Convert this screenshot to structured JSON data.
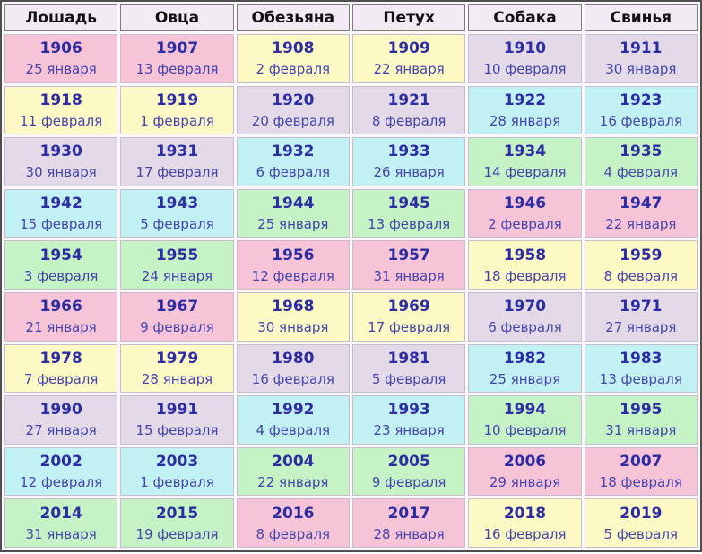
{
  "colors": {
    "pink": "#f7c3d6",
    "yellow": "#fcf9c5",
    "lavender": "#e3d9e7",
    "cyan": "#c2f1f3",
    "green": "#c6f3c6",
    "header_bg": "#f3ebf4",
    "table_bg": "#faf8fb",
    "outer_border": "#4f4f4f",
    "header_border": "#7d7d7d",
    "cell_border": "#c8bcd0",
    "year_text": "#2d2da3",
    "date_text": "#4444ad"
  },
  "table": {
    "columns": [
      "Лошадь",
      "Овца",
      "Обезьяна",
      "Петух",
      "Собака",
      "Свинья"
    ],
    "rows": [
      [
        {
          "year": "1906",
          "date": "25 января",
          "color": "pink"
        },
        {
          "year": "1907",
          "date": "13 февраля",
          "color": "pink"
        },
        {
          "year": "1908",
          "date": "2 февраля",
          "color": "yellow"
        },
        {
          "year": "1909",
          "date": "22 января",
          "color": "yellow"
        },
        {
          "year": "1910",
          "date": "10 февраля",
          "color": "lavender"
        },
        {
          "year": "1911",
          "date": "30 января",
          "color": "lavender"
        }
      ],
      [
        {
          "year": "1918",
          "date": "11 февраля",
          "color": "yellow"
        },
        {
          "year": "1919",
          "date": "1 февраля",
          "color": "yellow"
        },
        {
          "year": "1920",
          "date": "20 февраля",
          "color": "lavender"
        },
        {
          "year": "1921",
          "date": "8 февраля",
          "color": "lavender"
        },
        {
          "year": "1922",
          "date": "28 января",
          "color": "cyan"
        },
        {
          "year": "1923",
          "date": "16 февраля",
          "color": "cyan"
        }
      ],
      [
        {
          "year": "1930",
          "date": "30 января",
          "color": "lavender"
        },
        {
          "year": "1931",
          "date": "17 февраля",
          "color": "lavender"
        },
        {
          "year": "1932",
          "date": "6 февраля",
          "color": "cyan"
        },
        {
          "year": "1933",
          "date": "26 января",
          "color": "cyan"
        },
        {
          "year": "1934",
          "date": "14 февраля",
          "color": "green"
        },
        {
          "year": "1935",
          "date": "4 февраля",
          "color": "green"
        }
      ],
      [
        {
          "year": "1942",
          "date": "15 февраля",
          "color": "cyan"
        },
        {
          "year": "1943",
          "date": "5 февраля",
          "color": "cyan"
        },
        {
          "year": "1944",
          "date": "25 января",
          "color": "green"
        },
        {
          "year": "1945",
          "date": "13 февраля",
          "color": "green"
        },
        {
          "year": "1946",
          "date": "2 февраля",
          "color": "pink"
        },
        {
          "year": "1947",
          "date": "22 января",
          "color": "pink"
        }
      ],
      [
        {
          "year": "1954",
          "date": "3 февраля",
          "color": "green"
        },
        {
          "year": "1955",
          "date": "24 января",
          "color": "green"
        },
        {
          "year": "1956",
          "date": "12 февраля",
          "color": "pink"
        },
        {
          "year": "1957",
          "date": "31 января",
          "color": "pink"
        },
        {
          "year": "1958",
          "date": "18 февраля",
          "color": "yellow"
        },
        {
          "year": "1959",
          "date": "8 февраля",
          "color": "yellow"
        }
      ],
      [
        {
          "year": "1966",
          "date": "21 января",
          "color": "pink"
        },
        {
          "year": "1967",
          "date": "9 февраля",
          "color": "pink"
        },
        {
          "year": "1968",
          "date": "30 января",
          "color": "yellow"
        },
        {
          "year": "1969",
          "date": "17 февраля",
          "color": "yellow"
        },
        {
          "year": "1970",
          "date": "6 февраля",
          "color": "lavender"
        },
        {
          "year": "1971",
          "date": "27 января",
          "color": "lavender"
        }
      ],
      [
        {
          "year": "1978",
          "date": "7 февраля",
          "color": "yellow"
        },
        {
          "year": "1979",
          "date": "28 января",
          "color": "yellow"
        },
        {
          "year": "1980",
          "date": "16 февраля",
          "color": "lavender"
        },
        {
          "year": "1981",
          "date": "5 февраля",
          "color": "lavender"
        },
        {
          "year": "1982",
          "date": "25 января",
          "color": "cyan"
        },
        {
          "year": "1983",
          "date": "13 февраля",
          "color": "cyan"
        }
      ],
      [
        {
          "year": "1990",
          "date": "27 января",
          "color": "lavender"
        },
        {
          "year": "1991",
          "date": "15 февраля",
          "color": "lavender"
        },
        {
          "year": "1992",
          "date": "4 февраля",
          "color": "cyan"
        },
        {
          "year": "1993",
          "date": "23 января",
          "color": "cyan"
        },
        {
          "year": "1994",
          "date": "10 февраля",
          "color": "green"
        },
        {
          "year": "1995",
          "date": "31 января",
          "color": "green"
        }
      ],
      [
        {
          "year": "2002",
          "date": "12 февраля",
          "color": "cyan"
        },
        {
          "year": "2003",
          "date": "1 февраля",
          "color": "cyan"
        },
        {
          "year": "2004",
          "date": "22 января",
          "color": "green"
        },
        {
          "year": "2005",
          "date": "9 февраля",
          "color": "green"
        },
        {
          "year": "2006",
          "date": "29 января",
          "color": "pink"
        },
        {
          "year": "2007",
          "date": "18 февраля",
          "color": "pink"
        }
      ],
      [
        {
          "year": "2014",
          "date": "31 января",
          "color": "green"
        },
        {
          "year": "2015",
          "date": "19 февраля",
          "color": "green"
        },
        {
          "year": "2016",
          "date": "8 февраля",
          "color": "pink"
        },
        {
          "year": "2017",
          "date": "28 января",
          "color": "pink"
        },
        {
          "year": "2018",
          "date": "16 февраля",
          "color": "yellow"
        },
        {
          "year": "2019",
          "date": "5 февраля",
          "color": "yellow"
        }
      ]
    ]
  }
}
